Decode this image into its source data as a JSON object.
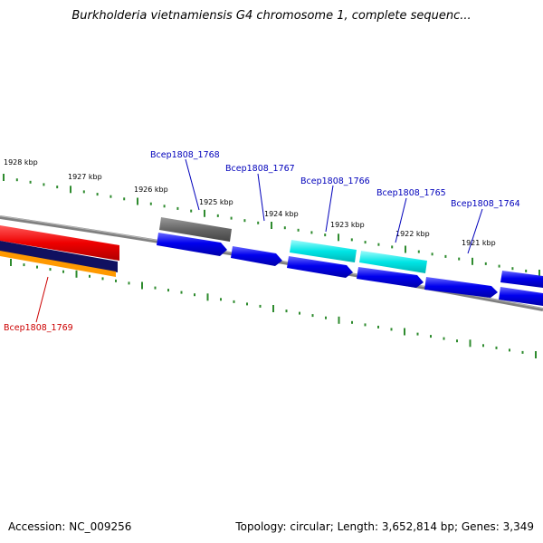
{
  "header": {
    "title": "Burkholderia vietnamiensis G4 chromosome 1, complete sequenc..."
  },
  "footer": {
    "accession": "Accession: NC_009256",
    "summary": "Topology: circular; Length: 3,652,814 bp; Genes: 3,349"
  },
  "ticks": [
    {
      "label": "1928 kbp"
    },
    {
      "label": "1927 kbp"
    },
    {
      "label": "1926 kbp"
    },
    {
      "label": "1925 kbp"
    },
    {
      "label": "1924 kbp"
    },
    {
      "label": "1923 kbp"
    },
    {
      "label": "1922 kbp"
    },
    {
      "label": "1921 kbp"
    }
  ],
  "genes": [
    {
      "name": "Bcep1808_1769"
    },
    {
      "name": "Bcep1808_1768"
    },
    {
      "name": "Bcep1808_1767"
    },
    {
      "name": "Bcep1808_1766"
    },
    {
      "name": "Bcep1808_1765"
    },
    {
      "name": "Bcep1808_1764"
    }
  ],
  "colors": {
    "label_blue": "#0000bb",
    "label_red": "#cc0000",
    "tick_green": "#2e8b2e",
    "backbone_gray": "#808080",
    "cds_blue": "#0000ee",
    "cds_cyan": "#00e5e5",
    "cds_gray": "#666666",
    "cds_red": "#ee0000",
    "cds_navy": "#101060",
    "cds_orange": "#ff9900"
  }
}
